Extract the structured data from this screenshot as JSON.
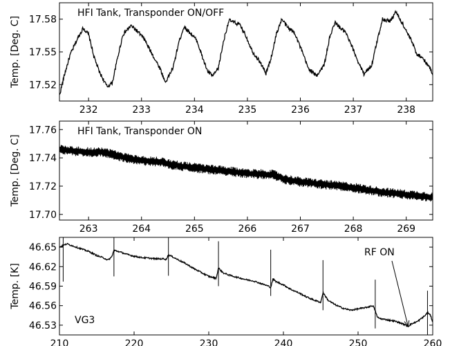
{
  "chart_data": [
    {
      "type": "line",
      "title": "",
      "annotation": "HFI Tank, Transponder ON/OFF",
      "xlabel": "",
      "ylabel": "Temp. [Deg. C]",
      "xlim": [
        231.45,
        238.5
      ],
      "ylim": [
        17.505,
        17.595
      ],
      "xticks": [
        232,
        233,
        234,
        235,
        236,
        237,
        238
      ],
      "yticks": [
        17.52,
        17.55,
        17.58
      ],
      "xtick_labels": [
        "232",
        "233",
        "234",
        "235",
        "236",
        "237",
        "238"
      ],
      "ytick_labels": [
        "17.52",
        "17.55",
        "17.58"
      ],
      "series": [
        {
          "x": [
            231.45,
            231.55,
            231.65,
            231.8,
            231.9,
            232.0,
            232.1,
            232.2,
            232.35,
            232.45,
            232.55,
            232.65,
            232.8,
            232.9,
            233.05,
            233.2,
            233.35,
            233.45,
            233.6,
            233.7,
            233.8,
            233.95,
            234.05,
            234.15,
            234.25,
            234.35,
            234.45,
            234.55,
            234.65,
            234.85,
            234.95,
            235.1,
            235.25,
            235.35,
            235.45,
            235.55,
            235.65,
            235.75,
            235.9,
            236.05,
            236.15,
            236.3,
            236.45,
            236.55,
            236.65,
            236.75,
            236.85,
            237.0,
            237.1,
            237.2,
            237.35,
            237.45,
            237.55,
            237.7,
            237.8,
            237.95,
            238.1,
            238.2,
            238.3,
            238.45,
            238.5
          ],
          "y": [
            17.51,
            17.53,
            17.547,
            17.563,
            17.572,
            17.566,
            17.546,
            17.532,
            17.518,
            17.522,
            17.545,
            17.566,
            17.574,
            17.57,
            17.562,
            17.548,
            17.535,
            17.522,
            17.536,
            17.558,
            17.573,
            17.566,
            17.56,
            17.545,
            17.532,
            17.528,
            17.535,
            17.56,
            17.579,
            17.575,
            17.567,
            17.55,
            17.54,
            17.53,
            17.545,
            17.567,
            17.58,
            17.573,
            17.567,
            17.548,
            17.535,
            17.528,
            17.538,
            17.562,
            17.577,
            17.572,
            17.568,
            17.552,
            17.54,
            17.53,
            17.538,
            17.56,
            17.58,
            17.578,
            17.587,
            17.574,
            17.56,
            17.548,
            17.545,
            17.535,
            17.53
          ]
        }
      ]
    },
    {
      "type": "line",
      "title": "",
      "annotation": "HFI Tank, Transponder ON",
      "xlabel": "",
      "ylabel": "Temp. [Deg. C]",
      "xlim": [
        262.45,
        269.5
      ],
      "ylim": [
        17.696,
        17.766
      ],
      "xticks": [
        263,
        264,
        265,
        266,
        267,
        268,
        269
      ],
      "yticks": [
        17.7,
        17.72,
        17.74,
        17.76
      ],
      "xtick_labels": [
        "263",
        "264",
        "265",
        "266",
        "267",
        "268",
        "269"
      ],
      "ytick_labels": [
        "17.70",
        "17.72",
        "17.74",
        "17.76"
      ],
      "series": [
        {
          "x": [
            262.45,
            262.7,
            263.0,
            263.3,
            263.5,
            263.7,
            264.0,
            264.4,
            264.6,
            265.0,
            265.5,
            266.0,
            266.5,
            266.7,
            267.0,
            267.5,
            268.0,
            268.5,
            269.0,
            269.3,
            269.5
          ],
          "y": [
            17.746,
            17.745,
            17.744,
            17.744,
            17.742,
            17.74,
            17.738,
            17.737,
            17.735,
            17.733,
            17.731,
            17.729,
            17.728,
            17.725,
            17.723,
            17.721,
            17.719,
            17.716,
            17.714,
            17.713,
            17.712
          ]
        }
      ]
    },
    {
      "type": "line",
      "title": "",
      "annotation": "VG3",
      "xlabel": "",
      "ylabel": "Temp. [K]",
      "xlim": [
        210,
        260
      ],
      "ylim": [
        46.515,
        46.665
      ],
      "xticks": [
        210,
        220,
        230,
        240,
        250,
        260
      ],
      "yticks": [
        46.53,
        46.56,
        46.59,
        46.62,
        46.65
      ],
      "xtick_labels": [
        "210",
        "220",
        "230",
        "240",
        "250",
        "260"
      ],
      "ytick_labels": [
        "46.53",
        "46.56",
        "46.59",
        "46.62",
        "46.65"
      ],
      "arrow_label": "RF ON",
      "arrow_target_x": 256.7,
      "arrow_target_y": 46.528,
      "series": [
        {
          "x": [
            210.0,
            211.0,
            212.0,
            213.0,
            214.0,
            215.0,
            216.0,
            216.5,
            217.0,
            217.3,
            218.0,
            219.0,
            220.0,
            221.0,
            222.0,
            223.0,
            224.0,
            224.3,
            224.6,
            225.0,
            226.0,
            227.0,
            228.0,
            229.0,
            230.0,
            231.0,
            231.3,
            231.6,
            232.0,
            233.0,
            234.0,
            235.0,
            236.0,
            237.0,
            238.0,
            238.3,
            238.6,
            239.0,
            240.0,
            241.0,
            242.0,
            243.0,
            244.0,
            245.0,
            245.3,
            245.6,
            246.0,
            247.0,
            248.0,
            249.0,
            250.0,
            251.0,
            252.0,
            252.3,
            252.6,
            253.0,
            254.0,
            255.0,
            256.0,
            256.7,
            257.0,
            258.0,
            259.0,
            259.3,
            259.7,
            260.0
          ],
          "y": [
            46.65,
            46.655,
            46.651,
            46.647,
            46.643,
            46.637,
            46.633,
            46.63,
            46.635,
            46.645,
            46.643,
            46.639,
            46.636,
            46.634,
            46.633,
            46.632,
            46.632,
            46.631,
            46.638,
            46.636,
            46.63,
            46.624,
            46.617,
            46.611,
            46.605,
            46.602,
            46.618,
            46.614,
            46.61,
            46.606,
            46.603,
            46.6,
            46.598,
            46.594,
            46.59,
            46.588,
            46.601,
            46.597,
            46.592,
            46.585,
            46.58,
            46.574,
            46.569,
            46.565,
            46.58,
            46.575,
            46.568,
            46.561,
            46.556,
            46.553,
            46.555,
            46.557,
            46.56,
            46.552,
            46.542,
            46.54,
            46.538,
            46.536,
            46.532,
            46.528,
            46.531,
            46.536,
            46.545,
            46.55,
            46.545,
            46.535
          ]
        }
      ],
      "spikes": [
        {
          "x": 210.5,
          "y_low": 46.597,
          "y_high": 46.665
        },
        {
          "x": 217.3,
          "y_low": 46.605,
          "y_high": 46.666
        },
        {
          "x": 224.6,
          "y_low": 46.606,
          "y_high": 46.666
        },
        {
          "x": 231.3,
          "y_low": 46.59,
          "y_high": 46.659
        },
        {
          "x": 238.3,
          "y_low": 46.575,
          "y_high": 46.646
        },
        {
          "x": 245.3,
          "y_low": 46.553,
          "y_high": 46.63
        },
        {
          "x": 252.3,
          "y_low": 46.525,
          "y_high": 46.6
        },
        {
          "x": 259.3,
          "y_low": 46.515,
          "y_high": 46.583
        }
      ]
    }
  ]
}
